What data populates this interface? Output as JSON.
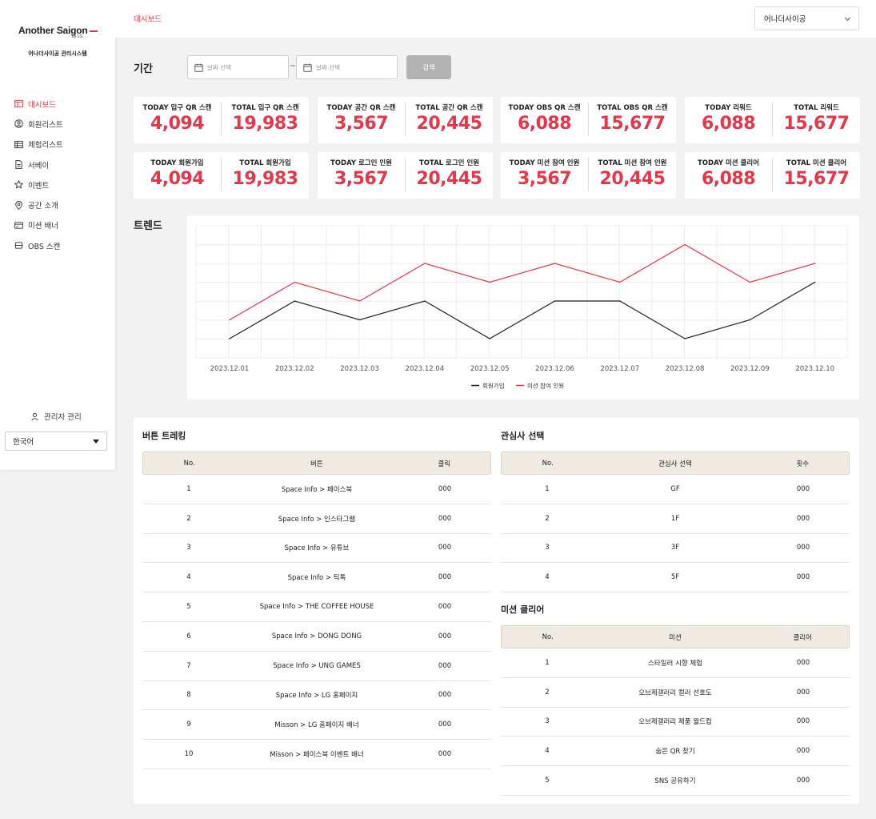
{
  "brand": {
    "logo_text": "Another Saigon",
    "logo_by": "by LG",
    "system_name": "어나더사이공 관리시스템"
  },
  "sidebar": {
    "items": [
      {
        "label": "대시보드",
        "icon": "dashboard-icon",
        "active": true
      },
      {
        "label": "회원리스트",
        "icon": "user-circle-icon"
      },
      {
        "label": "체험리스트",
        "icon": "table-icon"
      },
      {
        "label": "서베이",
        "icon": "document-icon"
      },
      {
        "label": "이벤트",
        "icon": "star-icon"
      },
      {
        "label": "공간 소개",
        "icon": "location-pin-icon"
      },
      {
        "label": "미션 배너",
        "icon": "card-icon"
      },
      {
        "label": "OBS 스캔",
        "icon": "scan-icon"
      }
    ],
    "admin_label": "관리자 관리",
    "language": "한국어"
  },
  "header": {
    "title": "대시보드",
    "store": "어나더사이공"
  },
  "period": {
    "label": "기간",
    "start_placeholder": "날짜 선택",
    "end_placeholder": "날짜 선택",
    "separator": "~",
    "search_label": "검색"
  },
  "stats": [
    {
      "today_label": "TODAY 입구 QR 스캔",
      "today_value": "4,094",
      "total_label": "TOTAL 입구 QR 스캔",
      "total_value": "19,983"
    },
    {
      "today_label": "TODAY 공간 QR 스캔",
      "today_value": "3,567",
      "total_label": "TOTAL 공간 QR 스캔",
      "total_value": "20,445"
    },
    {
      "today_label": "TODAY OBS QR 스캔",
      "today_value": "6,088",
      "total_label": "TOTAL OBS QR 스캔",
      "total_value": "15,677"
    },
    {
      "today_label": "TODAY 리워드",
      "today_value": "6,088",
      "total_label": "TOTAL 리워드",
      "total_value": "15,677"
    },
    {
      "today_label": "TODAY 회원가입",
      "today_value": "4,094",
      "total_label": "TOTAL 회원가입",
      "total_value": "19,983"
    },
    {
      "today_label": "TODAY 로그인 인원",
      "today_value": "3,567",
      "total_label": "TOTAL 로그인 인원",
      "total_value": "20,445"
    },
    {
      "today_label": "TODAY 미션 참여 인원",
      "today_value": "3,567",
      "total_label": "TOTAL 미션 참여 인원",
      "total_value": "20,445"
    },
    {
      "today_label": "TODAY 미션 클리어",
      "today_value": "6,088",
      "total_label": "TOTAL 미션 클리어",
      "total_value": "15,677"
    }
  ],
  "trend": {
    "label": "트렌드"
  },
  "chart_data": {
    "type": "line",
    "x": [
      "2023.12.01",
      "2023.12.02",
      "2023.12.03",
      "2023.12.04",
      "2023.12.05",
      "2023.12.06",
      "2023.12.07",
      "2023.12.08",
      "2023.12.09",
      "2023.12.10"
    ],
    "series": [
      {
        "name": "회원가입",
        "color": "#222222",
        "values": [
          1,
          3,
          2,
          3,
          1,
          3,
          3,
          1,
          2,
          4
        ]
      },
      {
        "name": "미션 참여 인원",
        "color": "#e5364a",
        "values": [
          2,
          4,
          3,
          5,
          4,
          5,
          4,
          6,
          4,
          5
        ]
      }
    ],
    "ylim": [
      0,
      6
    ],
    "grid": true,
    "legend": "bottom-center"
  },
  "button_tracking": {
    "title": "버튼 트레킹",
    "headers": [
      "No.",
      "버튼",
      "클릭"
    ],
    "rows": [
      [
        "1",
        "Space Info > 페이스북",
        "000"
      ],
      [
        "2",
        "Space Info > 인스타그램",
        "000"
      ],
      [
        "3",
        "Space Info > 유튜브",
        "000"
      ],
      [
        "4",
        "Space Info > 틱톡",
        "000"
      ],
      [
        "5",
        "Space Info > THE COFFEE HOUSE",
        "000"
      ],
      [
        "6",
        "Space Info > DONG DONG",
        "000"
      ],
      [
        "7",
        "Space Info > UNG GAMES",
        "000"
      ],
      [
        "8",
        "Space Info > LG 홈페이지",
        "000"
      ],
      [
        "9",
        "Misson >  LG 홈페이지 배너",
        "000"
      ],
      [
        "10",
        "Misson > 페이스북 이벤트 배너",
        "000"
      ]
    ]
  },
  "interests": {
    "title": "관심사 선택",
    "headers": [
      "No.",
      "관심사 선택",
      "횟수"
    ],
    "rows": [
      [
        "1",
        "GF",
        "000"
      ],
      [
        "2",
        "1F",
        "000"
      ],
      [
        "3",
        "3F",
        "000"
      ],
      [
        "4",
        "5F",
        "000"
      ]
    ]
  },
  "mission_clear": {
    "title": "미션 클리어",
    "headers": [
      "No.",
      "미션",
      "클리어"
    ],
    "rows": [
      [
        "1",
        "스타일러 시향 체험",
        "000"
      ],
      [
        "2",
        "오브제갤러리 컬러 선호도",
        "000"
      ],
      [
        "3",
        "오브제갤러리 제품 월드컵",
        "000"
      ],
      [
        "4",
        "숨은 QR 찾기",
        "000"
      ],
      [
        "5",
        "SNS 공유하기",
        "000"
      ]
    ]
  }
}
